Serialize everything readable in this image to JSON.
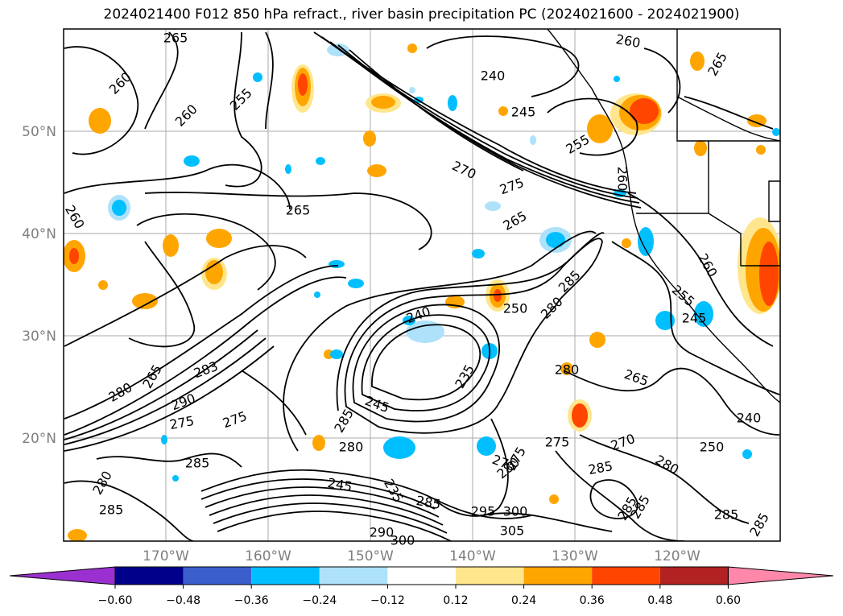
{
  "title": "2024021400 F012 850 hPa refract., river basin precipitation PC (2024021600 - 2024021900)",
  "latitude_labels": [
    "50°N",
    "40°N",
    "30°N",
    "20°N"
  ],
  "longitude_labels": [
    "170°W",
    "160°W",
    "150°W",
    "140°W",
    "130°W",
    "120°W"
  ],
  "colorbar": {
    "ticks": [
      "−0.60",
      "−0.48",
      "−0.36",
      "−0.24",
      "−0.12",
      "0.12",
      "0.24",
      "0.36",
      "0.48",
      "0.60"
    ],
    "colors": [
      "#9b30d0",
      "#00008b",
      "#3a5fcd",
      "#00bfff",
      "#aee2fa",
      "#ffffff",
      "#ffe68c",
      "#ffa500",
      "#ff4500",
      "#b22222",
      "#ff88aa"
    ]
  },
  "contour_labels": [
    "265",
    "260",
    "260",
    "255",
    "240",
    "245",
    "260",
    "265",
    "255",
    "270",
    "275",
    "260",
    "265",
    "265",
    "260",
    "260",
    "255",
    "245",
    "240",
    "250",
    "280",
    "283",
    "290",
    "275",
    "285",
    "265",
    "280",
    "245",
    "235",
    "275",
    "285",
    "280",
    "275",
    "285",
    "245",
    "235",
    "285",
    "295",
    "300",
    "305",
    "290",
    "300",
    "280",
    "285",
    "270",
    "280",
    "250",
    "240",
    "265",
    "275",
    "285",
    "280",
    "275",
    "280",
    "285",
    "285",
    "285",
    "285"
  ],
  "map_features": [
    "coastline-north-america",
    "latitude-gridlines",
    "longitude-gridlines",
    "refractivity-contours",
    "precipitation-pc-shading"
  ]
}
